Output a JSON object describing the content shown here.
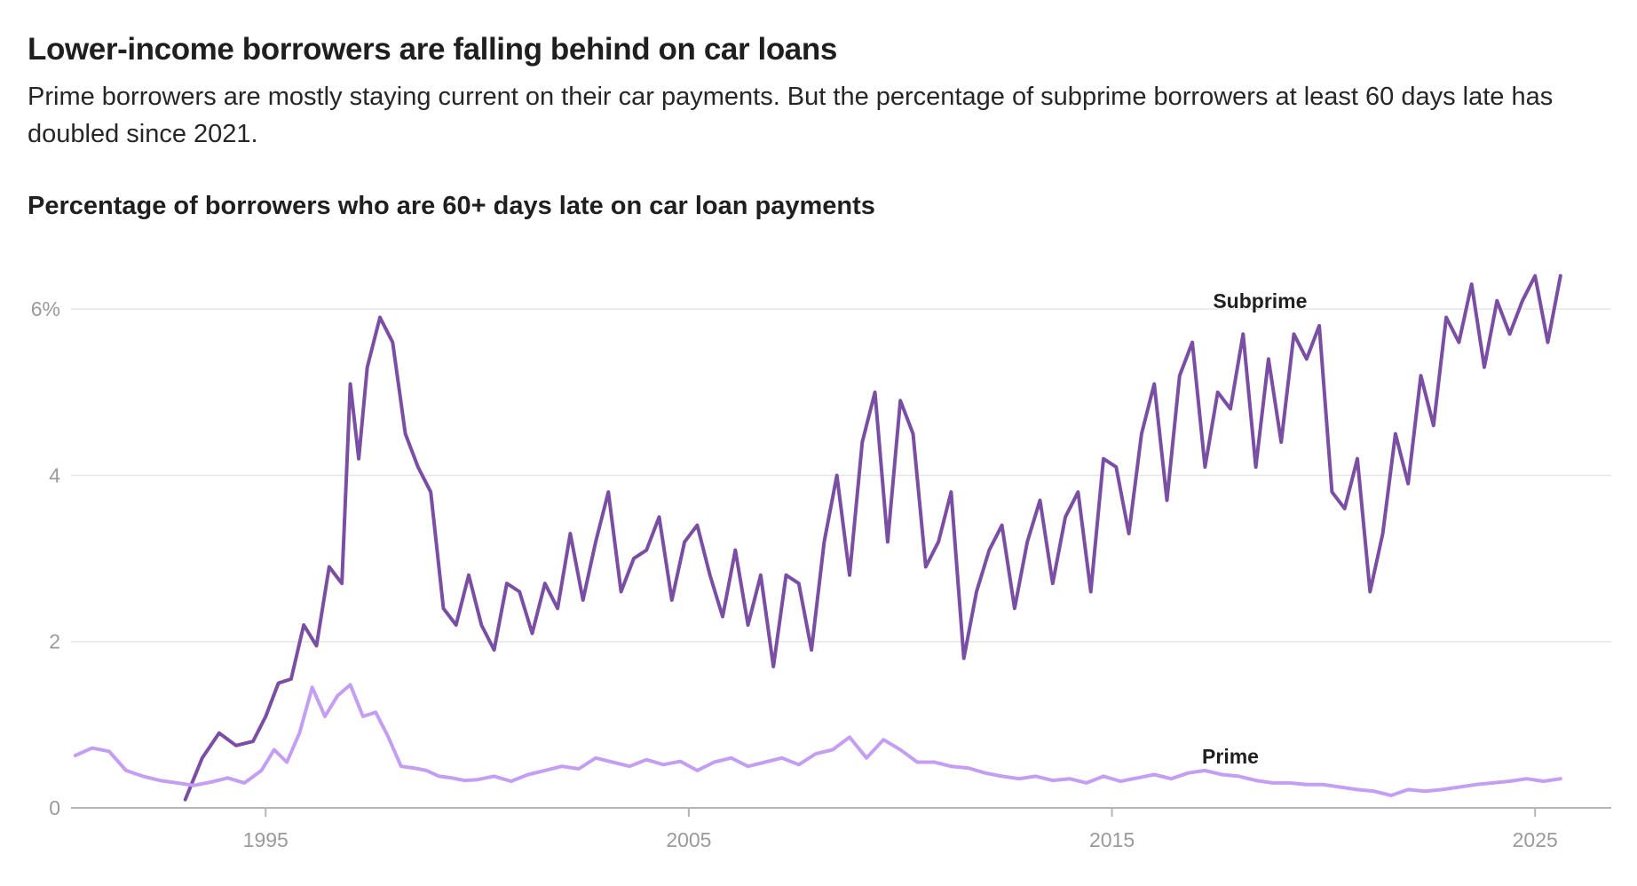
{
  "header": {
    "title": "Lower-income borrowers are falling behind on car loans",
    "subtitle": "Prime borrowers are mostly staying current on their car payments. But the percentage of subprime borrowers at least 60 days late has doubled since 2021."
  },
  "chart_data": {
    "type": "line",
    "title": "Percentage of borrowers who are 60+ days late on car loan payments",
    "xlabel": "",
    "ylabel": "",
    "xlim": [
      1990.4,
      2026.8
    ],
    "ylim": [
      0,
      6.6
    ],
    "x_ticks": [
      {
        "value": 1995,
        "label": "1995"
      },
      {
        "value": 2005,
        "label": "2005"
      },
      {
        "value": 2015,
        "label": "2015"
      },
      {
        "value": 2025,
        "label": "2025"
      }
    ],
    "y_ticks": [
      {
        "value": 0,
        "label": "0"
      },
      {
        "value": 2,
        "label": "2"
      },
      {
        "value": 4,
        "label": "4"
      },
      {
        "value": 6,
        "label": "6%"
      }
    ],
    "grid": true,
    "series": [
      {
        "name": "Subprime",
        "color": "#7a4fa3",
        "label_at": [
          2018.5,
          6.1
        ],
        "x": [
          1993.1,
          1993.5,
          1993.9,
          1994.3,
          1994.7,
          1995.0,
          1995.3,
          1995.6,
          1995.9,
          1996.2,
          1996.5,
          1996.8,
          1997.0,
          1997.2,
          1997.4,
          1997.7,
          1998.0,
          1998.3,
          1998.6,
          1998.9,
          1999.2,
          1999.5,
          1999.8,
          2000.1,
          2000.4,
          2000.7,
          2001.0,
          2001.3,
          2001.6,
          2001.9,
          2002.2,
          2002.5,
          2002.8,
          2003.1,
          2003.4,
          2003.7,
          2004.0,
          2004.3,
          2004.6,
          2004.9,
          2005.2,
          2005.5,
          2005.8,
          2006.1,
          2006.4,
          2006.7,
          2007.0,
          2007.3,
          2007.6,
          2007.9,
          2008.2,
          2008.5,
          2008.8,
          2009.1,
          2009.4,
          2009.7,
          2010.0,
          2010.3,
          2010.6,
          2010.9,
          2011.2,
          2011.5,
          2011.8,
          2012.1,
          2012.4,
          2012.7,
          2013.0,
          2013.3,
          2013.6,
          2013.9,
          2014.2,
          2014.5,
          2014.8,
          2015.1,
          2015.4,
          2015.7,
          2016.0,
          2016.3,
          2016.6,
          2016.9,
          2017.2,
          2017.5,
          2017.8,
          2018.1,
          2018.4,
          2018.7,
          2019.0,
          2019.3,
          2019.6,
          2019.9,
          2020.2,
          2020.5,
          2020.8,
          2021.1,
          2021.4,
          2021.7,
          2022.0,
          2022.3,
          2022.6,
          2022.9,
          2023.2,
          2023.5,
          2023.8,
          2024.1,
          2024.4,
          2024.7,
          2025.0,
          2025.3,
          2025.6
        ],
        "y": [
          0.1,
          0.6,
          0.9,
          0.75,
          0.8,
          1.1,
          1.5,
          1.55,
          2.2,
          1.95,
          2.9,
          2.7,
          5.1,
          4.2,
          5.3,
          5.9,
          5.6,
          4.5,
          4.1,
          3.8,
          2.4,
          2.2,
          2.8,
          2.2,
          1.9,
          2.7,
          2.6,
          2.1,
          2.7,
          2.4,
          3.3,
          2.5,
          3.2,
          3.8,
          2.6,
          3.0,
          3.1,
          3.5,
          2.5,
          3.2,
          3.4,
          2.8,
          2.3,
          3.1,
          2.2,
          2.8,
          1.7,
          2.8,
          2.7,
          1.9,
          3.2,
          4.0,
          2.8,
          4.4,
          5.0,
          3.2,
          4.9,
          4.5,
          2.9,
          3.2,
          3.8,
          1.8,
          2.6,
          3.1,
          3.4,
          2.4,
          3.2,
          3.7,
          2.7,
          3.5,
          3.8,
          2.6,
          4.2,
          4.1,
          3.3,
          4.5,
          5.1,
          3.7,
          5.2,
          5.6,
          4.1,
          5.0,
          4.8,
          5.7,
          4.1,
          5.4,
          4.4,
          5.7,
          5.4,
          5.8,
          3.8,
          3.6,
          4.2,
          2.6,
          3.3,
          4.5,
          3.9,
          5.2,
          4.6,
          5.9,
          5.6,
          6.3,
          5.3,
          6.1,
          5.7,
          6.1,
          6.4,
          5.6,
          6.4
        ]
      },
      {
        "name": "Prime",
        "color": "#c49ef2",
        "label_at": [
          2017.8,
          0.62
        ],
        "x": [
          1990.5,
          1990.9,
          1991.3,
          1991.7,
          1992.1,
          1992.5,
          1992.9,
          1993.3,
          1993.7,
          1994.1,
          1994.5,
          1994.9,
          1995.2,
          1995.5,
          1995.8,
          1996.1,
          1996.4,
          1996.7,
          1997.0,
          1997.3,
          1997.6,
          1997.9,
          1998.2,
          1998.5,
          1998.8,
          1999.1,
          1999.4,
          1999.7,
          2000.0,
          2000.4,
          2000.8,
          2001.2,
          2001.6,
          2002.0,
          2002.4,
          2002.8,
          2003.2,
          2003.6,
          2004.0,
          2004.4,
          2004.8,
          2005.2,
          2005.6,
          2006.0,
          2006.4,
          2006.8,
          2007.2,
          2007.6,
          2008.0,
          2008.4,
          2008.8,
          2009.2,
          2009.6,
          2010.0,
          2010.4,
          2010.8,
          2011.2,
          2011.6,
          2012.0,
          2012.4,
          2012.8,
          2013.2,
          2013.6,
          2014.0,
          2014.4,
          2014.8,
          2015.2,
          2015.6,
          2016.0,
          2016.4,
          2016.8,
          2017.2,
          2017.6,
          2018.0,
          2018.4,
          2018.8,
          2019.2,
          2019.6,
          2020.0,
          2020.4,
          2020.8,
          2021.2,
          2021.6,
          2022.0,
          2022.4,
          2022.8,
          2023.2,
          2023.6,
          2024.0,
          2024.4,
          2024.8,
          2025.2,
          2025.6
        ],
        "y": [
          0.63,
          0.72,
          0.68,
          0.45,
          0.38,
          0.33,
          0.3,
          0.27,
          0.31,
          0.36,
          0.3,
          0.45,
          0.7,
          0.55,
          0.9,
          1.45,
          1.1,
          1.35,
          1.48,
          1.1,
          1.15,
          0.85,
          0.5,
          0.48,
          0.45,
          0.38,
          0.36,
          0.33,
          0.34,
          0.38,
          0.32,
          0.4,
          0.45,
          0.5,
          0.47,
          0.6,
          0.55,
          0.5,
          0.58,
          0.52,
          0.56,
          0.45,
          0.55,
          0.6,
          0.5,
          0.55,
          0.6,
          0.52,
          0.65,
          0.7,
          0.85,
          0.6,
          0.82,
          0.7,
          0.55,
          0.55,
          0.5,
          0.48,
          0.42,
          0.38,
          0.35,
          0.38,
          0.33,
          0.35,
          0.3,
          0.38,
          0.32,
          0.36,
          0.4,
          0.35,
          0.42,
          0.45,
          0.4,
          0.38,
          0.33,
          0.3,
          0.3,
          0.28,
          0.28,
          0.25,
          0.22,
          0.2,
          0.15,
          0.22,
          0.2,
          0.22,
          0.25,
          0.28,
          0.3,
          0.32,
          0.35,
          0.32,
          0.35
        ]
      }
    ]
  }
}
